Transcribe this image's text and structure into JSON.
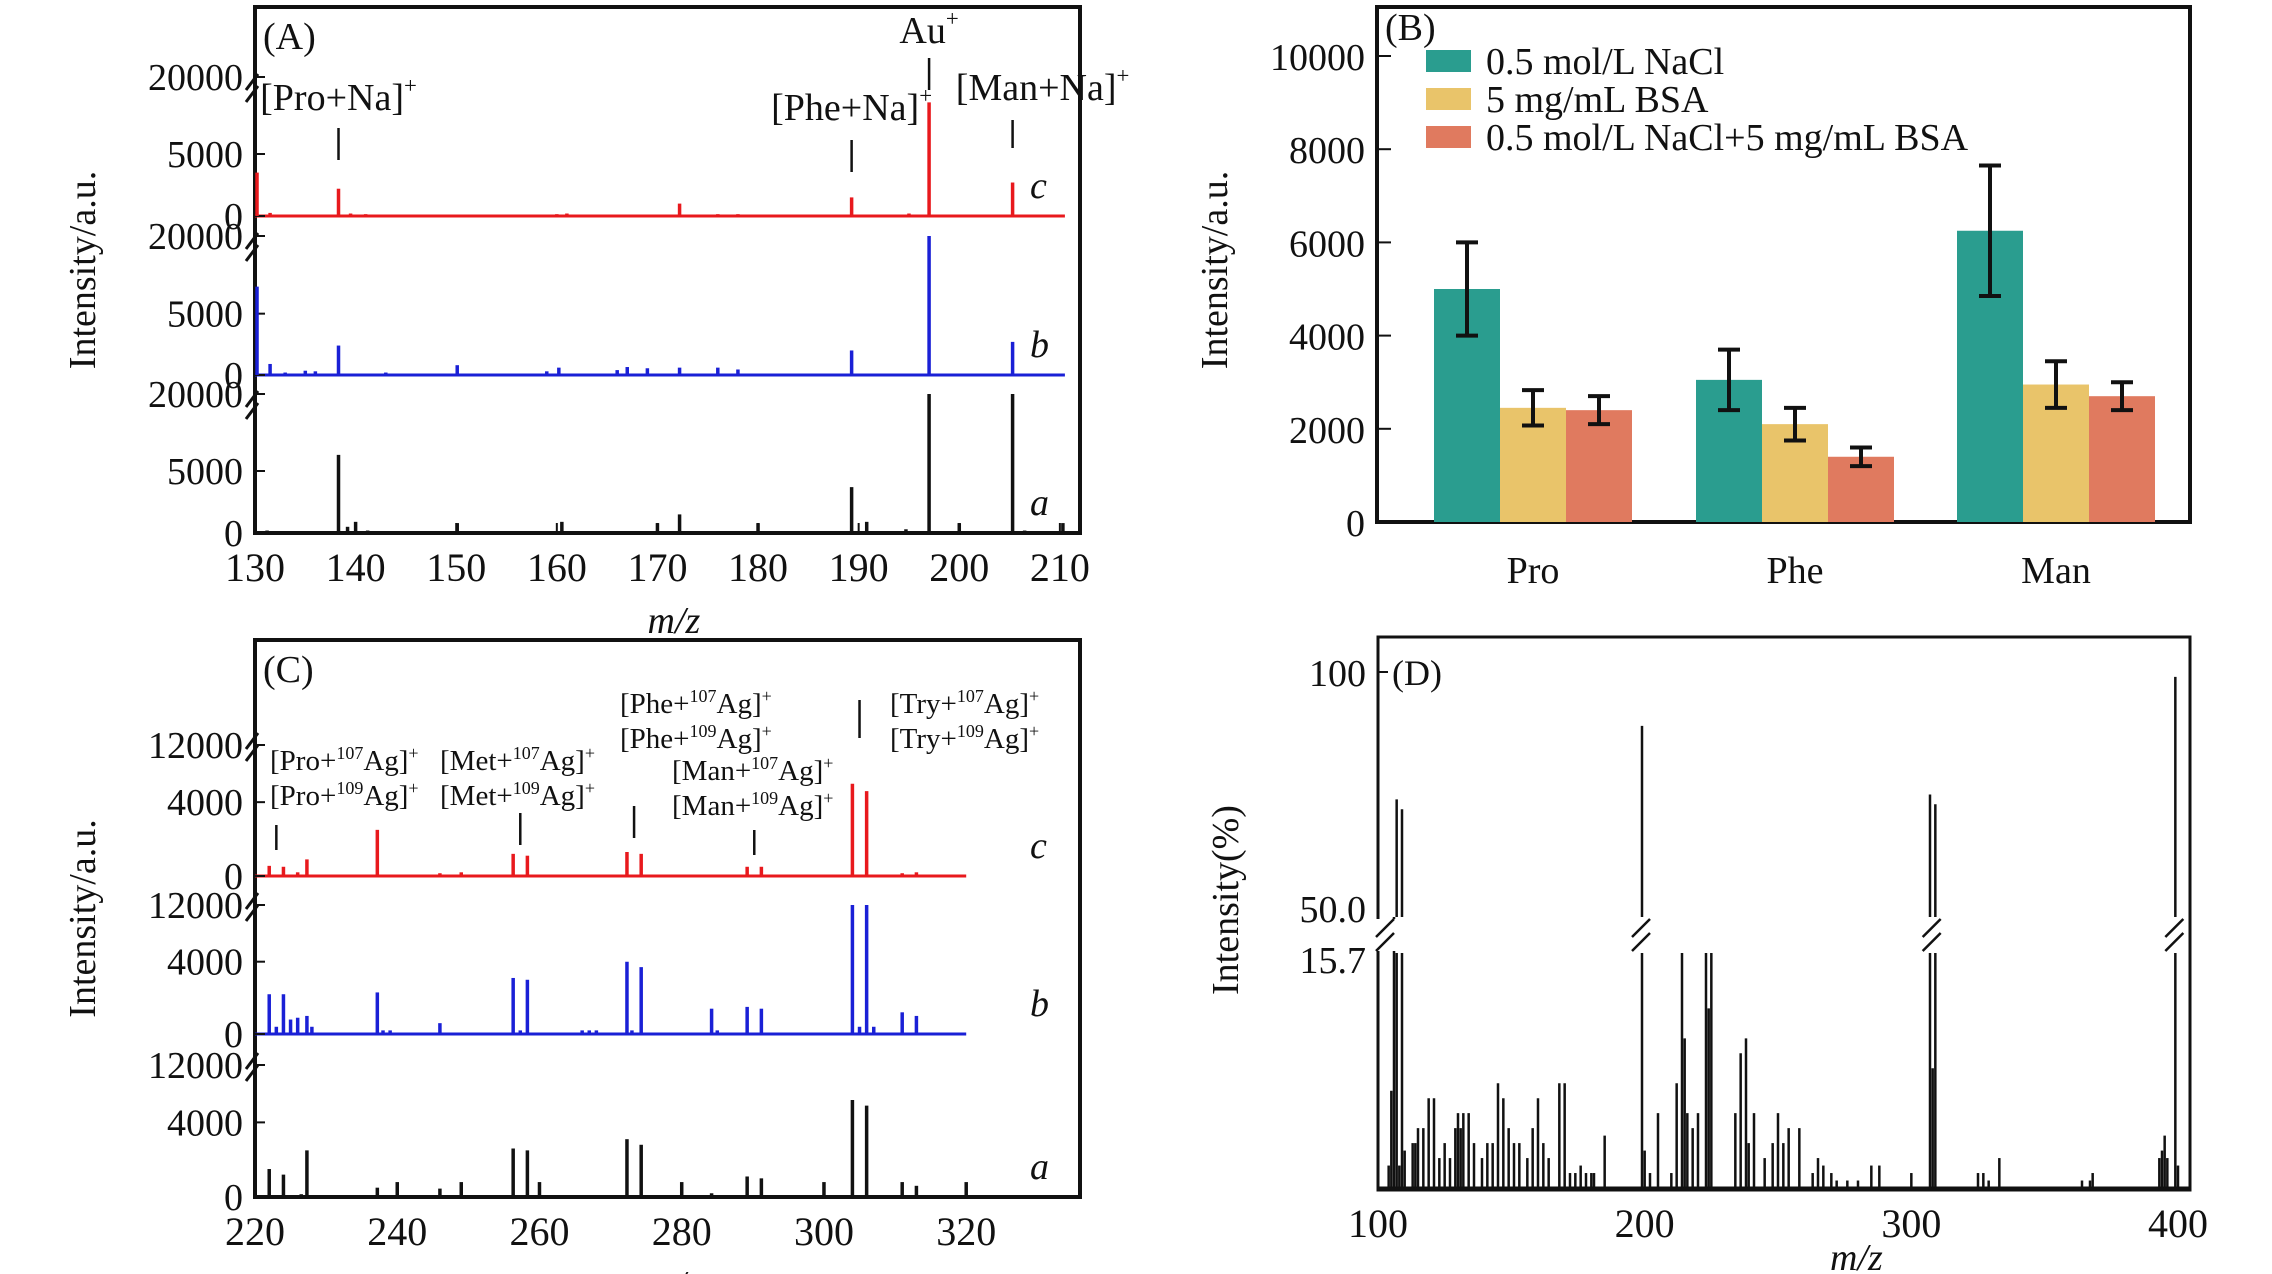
{
  "chart_data": [
    {
      "id": "A",
      "type": "bar",
      "subtype": "stacked-spectra-with-broken-axis",
      "panel_label": "(A)",
      "xlabel": "m/z",
      "ylabel": "Intensity/a.u.",
      "xlim": [
        130,
        212
      ],
      "xticks": [
        130,
        140,
        150,
        160,
        170,
        180,
        190,
        200,
        210
      ],
      "yticks_per_trace": [
        "0",
        "5000",
        "20000"
      ],
      "y_break": {
        "lower_max": 7500,
        "upper_label": 20000
      },
      "traces": [
        {
          "name": "c",
          "color": "#e8191d",
          "peaks": [
            [
              130.2,
              3500
            ],
            [
              131.5,
              250
            ],
            [
              138.3,
              2200
            ],
            [
              139.5,
              200
            ],
            [
              141,
              150
            ],
            [
              151,
              80
            ],
            [
              160,
              150
            ],
            [
              161,
              200
            ],
            [
              172.2,
              1000
            ],
            [
              176,
              150
            ],
            [
              178,
              150
            ],
            [
              189.3,
              1500
            ],
            [
              195,
              200
            ],
            [
              197,
              7800
            ],
            [
              205.3,
              2700
            ]
          ]
        },
        {
          "name": "b",
          "color": "#1a20d6",
          "peaks": [
            [
              130.2,
              7200
            ],
            [
              131.5,
              900
            ],
            [
              133,
              200
            ],
            [
              135,
              350
            ],
            [
              136,
              300
            ],
            [
              138.3,
              2400
            ],
            [
              143,
              200
            ],
            [
              150.1,
              800
            ],
            [
              159,
              300
            ],
            [
              160.2,
              600
            ],
            [
              166,
              400
            ],
            [
              167,
              650
            ],
            [
              169,
              550
            ],
            [
              172.2,
              600
            ],
            [
              176,
              600
            ],
            [
              178,
              450
            ],
            [
              189.3,
              2000
            ],
            [
              197,
              20000
            ],
            [
              205.3,
              2700
            ]
          ]
        },
        {
          "name": "a",
          "color": "#111111",
          "peaks": [
            [
              131.2,
              200
            ],
            [
              138.3,
              6300
            ],
            [
              139.2,
              500
            ],
            [
              140,
              900
            ],
            [
              141.2,
              200
            ],
            [
              150.1,
              800
            ],
            [
              160.5,
              900
            ],
            [
              170,
              800
            ],
            [
              172.2,
              1500
            ],
            [
              176,
              150
            ],
            [
              180,
              800
            ],
            [
              189.3,
              3700
            ],
            [
              190.8,
              900
            ],
            [
              194.7,
              300
            ],
            [
              197,
              20000
            ],
            [
              200,
              800
            ],
            [
              205.3,
              20000
            ],
            [
              206.5,
              200
            ],
            [
              210.3,
              800
            ]
          ]
        }
      ],
      "annotations": [
        {
          "text": "[Pro+Na]",
          "sup": "+",
          "mz": 138.3
        },
        {
          "text": "[Phe+Na]",
          "sup": "+",
          "mz": 189.3
        },
        {
          "text": "Au",
          "sup": "+",
          "mz": 197
        },
        {
          "text": "[Man+Na]",
          "sup": "+",
          "mz": 205.3
        }
      ]
    },
    {
      "id": "B",
      "type": "bar",
      "panel_label": "(B)",
      "title": "",
      "xlabel": "",
      "ylabel": "Intensity/a.u.",
      "ylim": [
        0,
        11000
      ],
      "yticks": [
        0,
        2000,
        4000,
        6000,
        8000,
        10000
      ],
      "categories": [
        "Pro",
        "Phe",
        "Man"
      ],
      "legend_position": "top-left",
      "series": [
        {
          "name": "0.5 mol/L NaCl",
          "color": "#2a9d8f",
          "values": [
            5000,
            3050,
            6250
          ],
          "errors": [
            1000,
            650,
            1400
          ]
        },
        {
          "name": "5 mg/mL BSA",
          "color": "#e9c46a",
          "values": [
            2450,
            2100,
            2950
          ],
          "errors": [
            380,
            350,
            500
          ]
        },
        {
          "name": "0.5 mol/L NaCl+5 mg/mL BSA",
          "color": "#e07a5f",
          "values": [
            2400,
            1400,
            2700
          ],
          "errors": [
            300,
            200,
            300
          ]
        }
      ]
    },
    {
      "id": "C",
      "type": "bar",
      "subtype": "stacked-spectra-with-broken-axis",
      "panel_label": "(C)",
      "xlabel": "m/z",
      "ylabel": "Intensity/a.u.",
      "xlim": [
        220,
        336
      ],
      "xticks": [
        220,
        240,
        260,
        280,
        300,
        320
      ],
      "yticks_per_trace": [
        "0",
        "4000",
        "12000"
      ],
      "y_break": {
        "lower_max": 5200,
        "upper_label": 12000
      },
      "traces": [
        {
          "name": "c",
          "color": "#e8191d",
          "peaks": [
            [
              222,
              550
            ],
            [
              224,
              500
            ],
            [
              226,
              200
            ],
            [
              227.3,
              900
            ],
            [
              237.2,
              2500
            ],
            [
              246,
              150
            ],
            [
              249,
              200
            ],
            [
              256.3,
              1200
            ],
            [
              258.3,
              1100
            ],
            [
              272.3,
              1300
            ],
            [
              274.3,
              1200
            ],
            [
              289.2,
              500
            ],
            [
              291.2,
              500
            ],
            [
              304,
              5000
            ],
            [
              306,
              4600
            ],
            [
              311,
              150
            ],
            [
              313,
              200
            ]
          ]
        },
        {
          "name": "b",
          "color": "#1a20d6",
          "peaks": [
            [
              222,
              2200
            ],
            [
              223,
              400
            ],
            [
              224,
              2200
            ],
            [
              225,
              800
            ],
            [
              226,
              900
            ],
            [
              227.3,
              1000
            ],
            [
              228,
              400
            ],
            [
              237.2,
              2300
            ],
            [
              238,
              200
            ],
            [
              239,
              200
            ],
            [
              246,
              600
            ],
            [
              256.3,
              3100
            ],
            [
              257.3,
              200
            ],
            [
              258.3,
              3000
            ],
            [
              266,
              200
            ],
            [
              267,
              200
            ],
            [
              268,
              200
            ],
            [
              272.3,
              4000
            ],
            [
              273,
              200
            ],
            [
              274.3,
              3700
            ],
            [
              284.2,
              1400
            ],
            [
              285,
              200
            ],
            [
              289.2,
              1500
            ],
            [
              291.2,
              1400
            ],
            [
              304,
              12000
            ],
            [
              305,
              400
            ],
            [
              306,
              12000
            ],
            [
              307,
              400
            ],
            [
              311,
              1200
            ],
            [
              313,
              1000
            ]
          ]
        },
        {
          "name": "a",
          "color": "#111111",
          "peaks": [
            [
              222,
              1500
            ],
            [
              224,
              1200
            ],
            [
              226.5,
              150
            ],
            [
              227.3,
              2500
            ],
            [
              237.2,
              500
            ],
            [
              240,
              800
            ],
            [
              246,
              450
            ],
            [
              249,
              800
            ],
            [
              256.3,
              2600
            ],
            [
              258.3,
              2500
            ],
            [
              260,
              800
            ],
            [
              272.3,
              3100
            ],
            [
              274.3,
              2800
            ],
            [
              280,
              800
            ],
            [
              284.2,
              200
            ],
            [
              289.2,
              1100
            ],
            [
              291.2,
              1000
            ],
            [
              300,
              800
            ],
            [
              304,
              5200
            ],
            [
              306,
              4900
            ],
            [
              311,
              800
            ],
            [
              313,
              600
            ],
            [
              320,
              800
            ]
          ]
        }
      ],
      "annotations": [
        {
          "lines": [
            [
              "[Pro+",
              "107",
              "Ag]",
              "+"
            ],
            [
              "[Pro+",
              "109",
              "Ag]",
              "+"
            ]
          ],
          "mz": 223
        },
        {
          "lines": [
            [
              "[Met+",
              "107",
              "Ag]",
              "+"
            ],
            [
              "[Met+",
              "109",
              "Ag]",
              "+"
            ]
          ],
          "mz": 257.3
        },
        {
          "lines": [
            [
              "[Phe+",
              "107",
              "Ag]",
              "+"
            ],
            [
              "[Phe+",
              "109",
              "Ag]",
              "+"
            ]
          ],
          "mz": 273.3
        },
        {
          "lines": [
            [
              "[Man+",
              "107",
              "Ag]",
              "+"
            ],
            [
              "[Man+",
              "109",
              "Ag]",
              "+"
            ]
          ],
          "mz": 290.2
        },
        {
          "lines": [
            [
              "[Try+",
              "107",
              "Ag]",
              "+"
            ],
            [
              "[Try+",
              "109",
              "Ag]",
              "+"
            ]
          ],
          "mz": 305
        }
      ]
    },
    {
      "id": "D",
      "type": "bar",
      "subtype": "spectrum-with-broken-axis",
      "panel_label": "(D)",
      "xlabel": "m/z",
      "ylabel": "Intensity(%)",
      "xlim": [
        100,
        400
      ],
      "xticks": [
        100,
        200,
        300,
        400
      ],
      "yticks": [
        "100",
        "50.0",
        "15.7"
      ],
      "y_break": {
        "lower_max": 15.7,
        "upper_min": 50.0,
        "upper_max": 100
      },
      "color": "#111111",
      "peaks": [
        [
          104,
          1.5
        ],
        [
          105,
          6.5
        ],
        [
          106,
          25
        ],
        [
          107,
          74
        ],
        [
          108,
          1.5
        ],
        [
          109,
          72
        ],
        [
          110,
          2.5
        ],
        [
          113,
          3
        ],
        [
          114,
          3
        ],
        [
          115,
          4
        ],
        [
          117,
          4
        ],
        [
          119,
          6
        ],
        [
          121,
          6
        ],
        [
          123,
          2
        ],
        [
          125,
          3
        ],
        [
          127,
          2
        ],
        [
          129,
          4
        ],
        [
          130,
          5
        ],
        [
          131,
          4
        ],
        [
          132,
          5
        ],
        [
          134,
          5
        ],
        [
          136,
          3
        ],
        [
          139,
          2
        ],
        [
          141,
          3
        ],
        [
          143,
          3
        ],
        [
          145,
          7
        ],
        [
          147,
          6
        ],
        [
          149,
          4
        ],
        [
          151,
          3
        ],
        [
          153,
          3
        ],
        [
          156,
          2
        ],
        [
          158,
          4
        ],
        [
          160,
          6
        ],
        [
          162,
          3
        ],
        [
          164,
          2
        ],
        [
          168,
          7
        ],
        [
          170,
          7
        ],
        [
          172,
          1
        ],
        [
          174,
          1
        ],
        [
          176,
          1.5
        ],
        [
          178,
          1
        ],
        [
          180,
          1
        ],
        [
          181,
          1
        ],
        [
          185,
          3.5
        ],
        [
          199,
          89
        ],
        [
          200,
          2.5
        ],
        [
          202,
          1
        ],
        [
          205,
          5
        ],
        [
          210,
          1
        ],
        [
          212,
          7
        ],
        [
          214,
          15.7
        ],
        [
          215,
          10
        ],
        [
          216,
          5
        ],
        [
          218,
          4
        ],
        [
          220,
          5
        ],
        [
          223,
          15.7
        ],
        [
          224,
          12
        ],
        [
          225,
          15.7
        ],
        [
          234,
          5
        ],
        [
          236,
          9
        ],
        [
          238,
          10
        ],
        [
          239,
          3
        ],
        [
          241,
          5
        ],
        [
          245,
          2
        ],
        [
          248,
          3
        ],
        [
          250,
          5
        ],
        [
          252,
          3
        ],
        [
          254,
          4
        ],
        [
          258,
          4
        ],
        [
          263,
          1
        ],
        [
          265,
          2
        ],
        [
          267,
          1.5
        ],
        [
          270,
          1
        ],
        [
          272,
          0.5
        ],
        [
          276,
          0.5
        ],
        [
          280,
          0.5
        ],
        [
          285,
          1.5
        ],
        [
          288,
          1.5
        ],
        [
          300,
          1
        ],
        [
          307,
          75
        ],
        [
          308,
          8
        ],
        [
          309,
          73
        ],
        [
          325,
          1
        ],
        [
          327,
          1
        ],
        [
          329,
          0.5
        ],
        [
          333,
          2
        ],
        [
          364,
          0.5
        ],
        [
          367,
          0.5
        ],
        [
          368,
          1
        ],
        [
          393,
          2
        ],
        [
          394,
          2.5
        ],
        [
          395,
          3.5
        ],
        [
          396,
          2
        ],
        [
          399,
          99
        ],
        [
          400,
          1.5
        ]
      ]
    }
  ]
}
